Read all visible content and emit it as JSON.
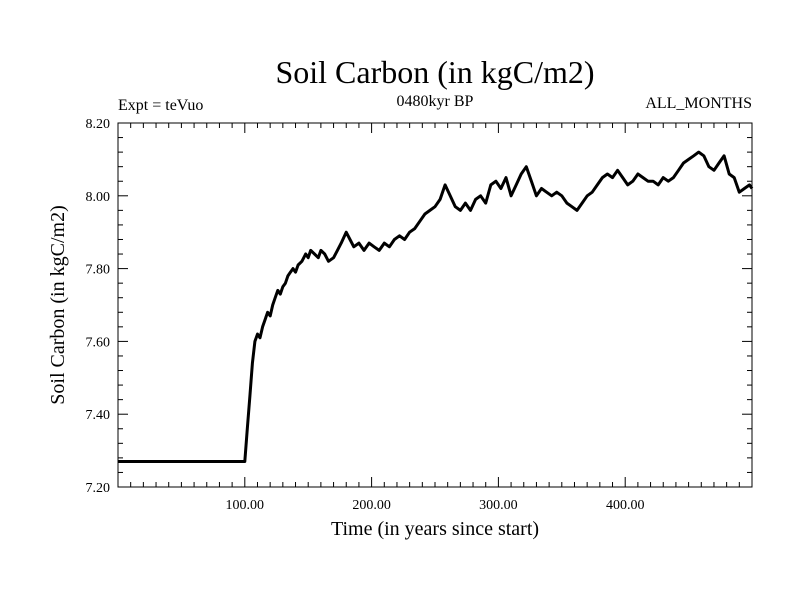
{
  "chart_data": {
    "type": "line",
    "title": "Soil Carbon (in kgC/m2)",
    "subtitle": "0480kyr BP",
    "left_label": "Expt = teVuo",
    "right_label": "ALL_MONTHS",
    "xlabel": "Time (in years since start)",
    "ylabel": "Soil Carbon (in kgC/m2)",
    "xlim": [
      0,
      500
    ],
    "ylim": [
      7.2,
      8.2
    ],
    "x_ticks": [
      100,
      200,
      300,
      400
    ],
    "x_tick_labels": [
      "100.00",
      "200.00",
      "300.00",
      "400.00"
    ],
    "y_ticks": [
      7.2,
      7.4,
      7.6,
      7.8,
      8.0,
      8.2
    ],
    "y_tick_labels": [
      "7.20",
      "7.40",
      "7.60",
      "7.80",
      "8.00",
      "8.20"
    ],
    "grid": false,
    "line_color": "#000000",
    "series": [
      {
        "x": [
          0,
          100,
          102,
          104,
          106,
          108,
          110,
          112,
          114,
          116,
          118,
          120,
          122,
          124,
          126,
          128,
          130,
          132,
          134,
          136,
          138,
          140,
          142,
          145,
          148,
          150,
          152,
          155,
          158,
          160,
          163,
          166,
          170,
          173,
          176,
          180,
          183,
          186,
          190,
          194,
          198,
          202,
          206,
          210,
          214,
          218,
          222,
          226,
          230,
          234,
          238,
          242,
          246,
          250,
          254,
          258,
          262,
          266,
          270,
          274,
          278,
          282,
          286,
          290,
          294,
          298,
          302,
          306,
          310,
          314,
          318,
          322,
          326,
          330,
          334,
          338,
          342,
          346,
          350,
          354,
          358,
          362,
          366,
          370,
          374,
          378,
          382,
          386,
          390,
          394,
          398,
          402,
          406,
          410,
          414,
          418,
          422,
          426,
          430,
          434,
          438,
          442,
          446,
          450,
          454,
          458,
          462,
          466,
          470,
          474,
          478,
          482,
          486,
          490,
          494,
          498,
          500
        ],
        "y": [
          7.27,
          7.27,
          7.36,
          7.45,
          7.54,
          7.6,
          7.62,
          7.61,
          7.64,
          7.66,
          7.68,
          7.67,
          7.7,
          7.72,
          7.74,
          7.73,
          7.75,
          7.76,
          7.78,
          7.79,
          7.8,
          7.79,
          7.81,
          7.82,
          7.84,
          7.83,
          7.85,
          7.84,
          7.83,
          7.85,
          7.84,
          7.82,
          7.83,
          7.85,
          7.87,
          7.9,
          7.88,
          7.86,
          7.87,
          7.85,
          7.87,
          7.86,
          7.85,
          7.87,
          7.86,
          7.88,
          7.89,
          7.88,
          7.9,
          7.91,
          7.93,
          7.95,
          7.96,
          7.97,
          7.99,
          8.03,
          8.0,
          7.97,
          7.96,
          7.98,
          7.96,
          7.99,
          8.0,
          7.98,
          8.03,
          8.04,
          8.02,
          8.05,
          8.0,
          8.03,
          8.06,
          8.08,
          8.04,
          8.0,
          8.02,
          8.01,
          8.0,
          8.01,
          8.0,
          7.98,
          7.97,
          7.96,
          7.98,
          8.0,
          8.01,
          8.03,
          8.05,
          8.06,
          8.05,
          8.07,
          8.05,
          8.03,
          8.04,
          8.06,
          8.05,
          8.04,
          8.04,
          8.03,
          8.05,
          8.04,
          8.05,
          8.07,
          8.09,
          8.1,
          8.11,
          8.12,
          8.11,
          8.08,
          8.07,
          8.09,
          8.11,
          8.06,
          8.05,
          8.01,
          8.02,
          8.03,
          8.02
        ]
      }
    ]
  }
}
